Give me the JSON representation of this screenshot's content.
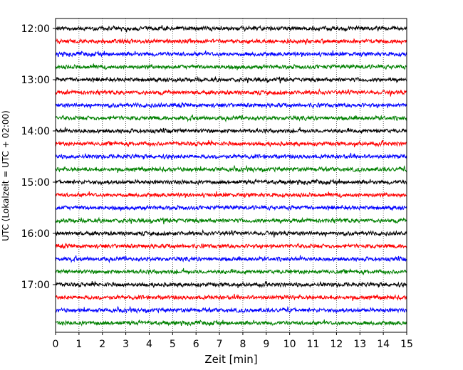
{
  "chart_data": {
    "type": "line",
    "title": "",
    "xlabel": "Zeit  [min]",
    "ylabel": "UTC (Lokalzeit = UTC + 02:00)",
    "xlim": [
      0,
      15
    ],
    "x_ticks": [
      "0",
      "1",
      "2",
      "3",
      "4",
      "5",
      "6",
      "7",
      "8",
      "9",
      "10",
      "11",
      "12",
      "13",
      "14",
      "15"
    ],
    "y_ticks": [
      "12:00",
      "13:00",
      "14:00",
      "15:00",
      "16:00",
      "17:00"
    ],
    "grid": "vertical-dotted",
    "trace_interval_minutes": 15,
    "start_time": "12:00",
    "trace_color_cycle": [
      "#000000",
      "#ff0000",
      "#0000ff",
      "#008000"
    ],
    "series": [
      {
        "start": "12:00",
        "color": "#000000"
      },
      {
        "start": "12:15",
        "color": "#ff0000"
      },
      {
        "start": "12:30",
        "color": "#0000ff"
      },
      {
        "start": "12:45",
        "color": "#008000"
      },
      {
        "start": "13:00",
        "color": "#000000"
      },
      {
        "start": "13:15",
        "color": "#ff0000"
      },
      {
        "start": "13:30",
        "color": "#0000ff"
      },
      {
        "start": "13:45",
        "color": "#008000"
      },
      {
        "start": "14:00",
        "color": "#000000"
      },
      {
        "start": "14:15",
        "color": "#ff0000"
      },
      {
        "start": "14:30",
        "color": "#0000ff"
      },
      {
        "start": "14:45",
        "color": "#008000"
      },
      {
        "start": "15:00",
        "color": "#000000"
      },
      {
        "start": "15:15",
        "color": "#ff0000"
      },
      {
        "start": "15:30",
        "color": "#0000ff"
      },
      {
        "start": "15:45",
        "color": "#008000"
      },
      {
        "start": "16:00",
        "color": "#000000"
      },
      {
        "start": "16:15",
        "color": "#ff0000"
      },
      {
        "start": "16:30",
        "color": "#0000ff"
      },
      {
        "start": "16:45",
        "color": "#008000"
      },
      {
        "start": "17:00",
        "color": "#000000"
      },
      {
        "start": "17:15",
        "color": "#ff0000"
      },
      {
        "start": "17:30",
        "color": "#0000ff"
      },
      {
        "start": "17:45",
        "color": "#008000"
      }
    ]
  }
}
